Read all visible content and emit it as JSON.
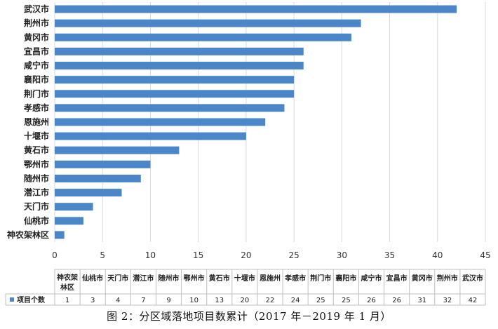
{
  "chart_data": {
    "type": "bar",
    "orientation": "horizontal",
    "categories": [
      "神农架林区",
      "仙桃市",
      "天门市",
      "潜江市",
      "随州市",
      "鄂州市",
      "黄石市",
      "十堰市",
      "恩施州",
      "孝感市",
      "荆门市",
      "襄阳市",
      "咸宁市",
      "宜昌市",
      "黄冈市",
      "荆州市",
      "武汉市"
    ],
    "table_categories": [
      "神农架林区",
      "仙桃市",
      "天门市",
      "潜江市",
      "随州市",
      "鄂州市",
      "黄石市",
      "十堰市",
      "恩施州",
      "孝感市",
      "荆门市",
      "襄阳市",
      "咸宁市",
      "宜昌市",
      "黄冈市",
      "荆州市",
      "武汉市"
    ],
    "series": [
      {
        "name": "项目个数",
        "values": [
          1,
          3,
          4,
          7,
          9,
          10,
          13,
          20,
          22,
          24,
          25,
          25,
          26,
          26,
          31,
          32,
          42
        ]
      }
    ],
    "xlim": [
      0,
      45
    ],
    "xticks": [
      "0",
      "5",
      "10",
      "15",
      "20",
      "25",
      "30",
      "35",
      "40",
      "45"
    ],
    "grid": true,
    "bar_color": "#4a86c8",
    "data_table": true,
    "caption": "图 2：分区域落地项目数累计（2017 年－2019 年 1 月）"
  }
}
